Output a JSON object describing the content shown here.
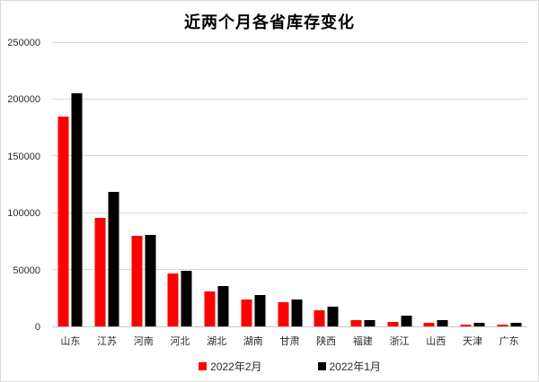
{
  "chart_data": {
    "type": "bar",
    "title": "近两个月各省库存变化",
    "categories": [
      "山东",
      "江苏",
      "河南",
      "河北",
      "湖北",
      "湖南",
      "甘肃",
      "陕西",
      "福建",
      "浙江",
      "山西",
      "天津",
      "广东"
    ],
    "series": [
      {
        "name": "2022年2月",
        "color": "#ff0000",
        "values": [
          185000,
          96000,
          80000,
          47000,
          30500,
          23500,
          21000,
          14000,
          5300,
          3700,
          3100,
          1800,
          1800
        ]
      },
      {
        "name": "2022年1月",
        "color": "#000000",
        "values": [
          206000,
          119000,
          81000,
          49000,
          36000,
          27500,
          23500,
          17500,
          5800,
          9700,
          5200,
          2900,
          3100
        ]
      }
    ],
    "xlabel": "",
    "ylabel": "",
    "ylim": [
      0,
      250000
    ],
    "ytick_step": 50000,
    "ytick_labels": [
      "0",
      "50000",
      "100000",
      "150000",
      "200000",
      "250000"
    ],
    "grid": true,
    "legend_position": "bottom"
  },
  "colors": {
    "grid": "#d9d9d9",
    "axis": "#c6c6c6",
    "frame": "#d9d9d9",
    "text": "#2b2b2b",
    "title": "#000000",
    "background": "#ffffff",
    "series_feb": "#ff0000",
    "series_jan": "#000000"
  }
}
